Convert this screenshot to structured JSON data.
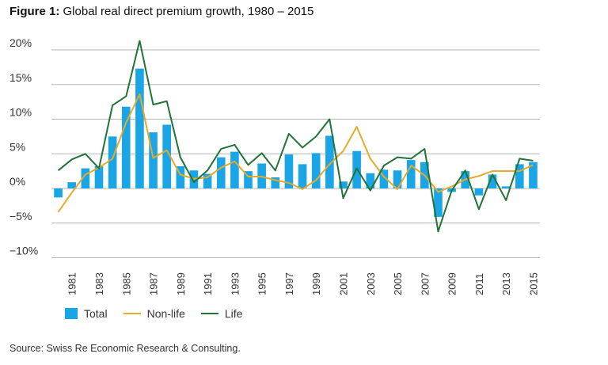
{
  "figure": {
    "label": "Figure 1:",
    "title": "Global real direct premium growth, 1980 – 2015",
    "source": "Source: Swiss Re Economic Research & Consulting."
  },
  "colors": {
    "total": "#1aa6e6",
    "nonlife": "#e3aa2b",
    "life": "#22733a",
    "grid": "#b5b5b5",
    "axis": "#333333"
  },
  "chart_data": {
    "type": "bar",
    "title": "Global real direct premium growth, 1980 – 2015",
    "x": [
      1980,
      1981,
      1982,
      1983,
      1984,
      1985,
      1986,
      1987,
      1988,
      1989,
      1990,
      1991,
      1992,
      1993,
      1994,
      1995,
      1996,
      1997,
      1998,
      1999,
      2000,
      2001,
      2002,
      2003,
      2004,
      2005,
      2006,
      2007,
      2008,
      2009,
      2010,
      2011,
      2012,
      2013,
      2014,
      2015
    ],
    "xticks": [
      "1981",
      "1983",
      "1985",
      "1987",
      "1989",
      "1991",
      "1993",
      "1995",
      "1997",
      "1999",
      "2001",
      "2003",
      "2005",
      "2007",
      "2009",
      "2011",
      "2013",
      "2015"
    ],
    "yticks": [
      {
        "value": 20,
        "label": "20%"
      },
      {
        "value": 15,
        "label": "15%"
      },
      {
        "value": 10,
        "label": "10%"
      },
      {
        "value": 5,
        "label": "5%"
      },
      {
        "value": 0,
        "label": "0%"
      },
      {
        "value": -5,
        "label": "−5%"
      },
      {
        "value": -10,
        "label": "−10%"
      }
    ],
    "ylim": [
      -10,
      20
    ],
    "grid": true,
    "legend_position": "bottom-left",
    "series": [
      {
        "name": "Total",
        "type": "bar",
        "values": [
          -1.3,
          0.9,
          2.9,
          3.2,
          7.5,
          11.8,
          17.3,
          8.1,
          9.2,
          3.2,
          2.6,
          2.1,
          4.5,
          5.3,
          2.5,
          3.6,
          1.6,
          4.9,
          3.5,
          5.1,
          7.6,
          1.0,
          5.4,
          2.2,
          2.7,
          2.6,
          4.1,
          3.8,
          -4.1,
          -0.5,
          2.5,
          -1.0,
          2.0,
          0.3,
          3.5,
          3.8
        ]
      },
      {
        "name": "Non-life",
        "type": "line",
        "values": [
          -3.4,
          -0.6,
          2.0,
          3.0,
          4.3,
          9.5,
          13.6,
          4.4,
          5.5,
          2.0,
          1.4,
          1.6,
          3.0,
          3.9,
          1.7,
          1.7,
          1.2,
          0.8,
          -0.1,
          1.2,
          3.5,
          5.4,
          8.9,
          4.3,
          1.7,
          -0.1,
          3.3,
          1.9,
          -0.5,
          0.3,
          1.3,
          1.8,
          2.5,
          2.5,
          2.5,
          3.4
        ]
      },
      {
        "name": "Life",
        "type": "line",
        "values": [
          2.6,
          4.2,
          5.0,
          2.9,
          12.0,
          13.3,
          21.3,
          12.1,
          12.6,
          4.5,
          0.9,
          2.6,
          5.7,
          6.3,
          3.4,
          5.1,
          2.6,
          7.9,
          5.9,
          7.5,
          10.0,
          -1.4,
          2.9,
          -0.3,
          3.3,
          4.5,
          4.3,
          5.7,
          -6.2,
          -0.3,
          2.6,
          -3.0,
          2.0,
          -1.7,
          4.3,
          4.0
        ]
      }
    ]
  }
}
